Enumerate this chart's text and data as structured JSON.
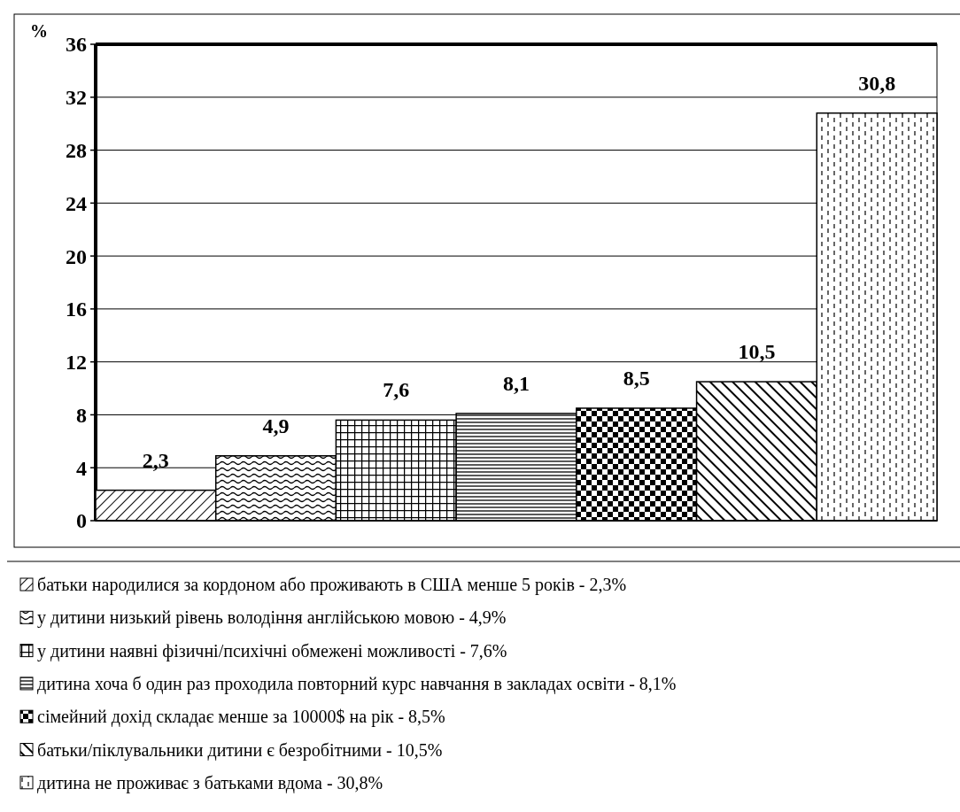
{
  "chart_data": {
    "type": "bar",
    "ylabel": "%",
    "categories": [
      null
    ],
    "series": [
      {
        "name": "батьки народилися за кордоном або проживають в США менше 5 років - 2,3%",
        "color": "#000000",
        "values": [
          2.3
        ],
        "value_labels": [
          "2,3"
        ]
      },
      {
        "name": "у дитини низький рівень володіння англійською мовою - 4,9%",
        "color": "#000000",
        "values": [
          4.9
        ],
        "value_labels": [
          "4,9"
        ]
      },
      {
        "name": "у дитини наявні фізичні/психічні обмежені можливості - 7,6%",
        "color": "#000000",
        "values": [
          7.6
        ],
        "value_labels": [
          "7,6"
        ]
      },
      {
        "name": "дитина хоча б один раз проходила повторний курс навчання в закладах освіти - 8,1%",
        "color": "#000000",
        "values": [
          8.1
        ],
        "value_labels": [
          "8,1"
        ]
      },
      {
        "name": "сімейний дохід складає менше за 10000$ на рік - 8,5%",
        "color": "#000000",
        "values": [
          8.5
        ],
        "value_labels": [
          "8,5"
        ]
      },
      {
        "name": "батьки/піклувальники дитини є безробітними - 10,5%",
        "color": "#000000",
        "values": [
          10.5
        ],
        "value_labels": [
          "10,5"
        ]
      },
      {
        "name": "дитина не проживає з батьками вдома - 30,8%",
        "color": "#000000",
        "values": [
          30.8
        ],
        "value_labels": [
          "30,8"
        ]
      }
    ],
    "ylim": [
      0,
      36
    ],
    "yticks": [
      0,
      4,
      8,
      12,
      16,
      20,
      24,
      28,
      32,
      36
    ],
    "grid": "y",
    "legend": "bottom"
  }
}
